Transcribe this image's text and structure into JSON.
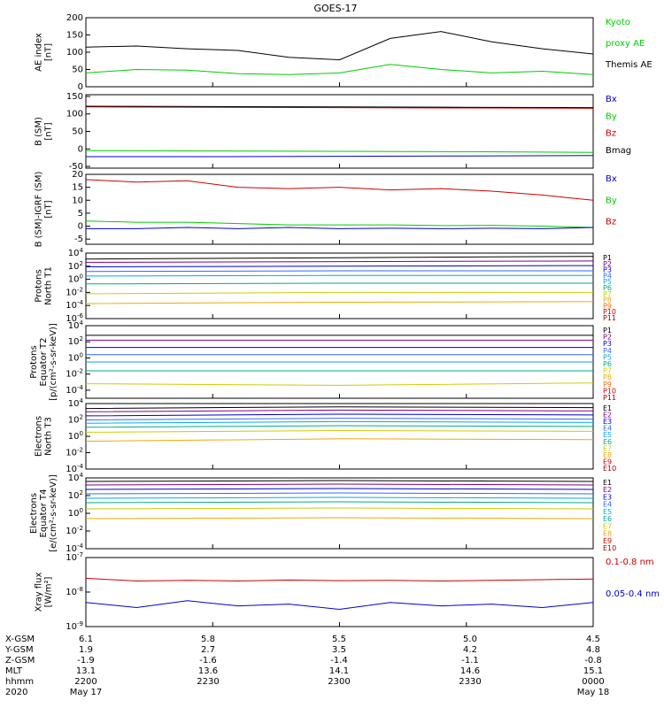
{
  "title": "GOES-17",
  "chart_data": [
    {
      "type": "line",
      "panel": "ae",
      "ylabel_lines": [
        "AE index",
        "[nT]"
      ],
      "ylim": [
        0,
        200
      ],
      "yticks": [
        "200",
        "150",
        "100",
        "50",
        "0"
      ],
      "yticks_values": [
        200,
        150,
        100,
        50,
        0
      ],
      "x": [
        0,
        0.1,
        0.2,
        0.3,
        0.4,
        0.5,
        0.6,
        0.7,
        0.8,
        0.9,
        1.0
      ],
      "legend": [
        {
          "label_lines": [
            "Kyoto",
            "proxy AE"
          ],
          "color": "#00cc00"
        },
        {
          "label_lines": [
            "Themis AE"
          ],
          "color": "#000000"
        }
      ],
      "series": [
        {
          "color": "#000000",
          "values": [
            115,
            118,
            110,
            105,
            85,
            78,
            140,
            160,
            130,
            110,
            95
          ]
        },
        {
          "color": "#00cc00",
          "values": [
            40,
            50,
            48,
            38,
            35,
            40,
            65,
            50,
            40,
            45,
            35
          ]
        }
      ]
    },
    {
      "type": "line",
      "panel": "bsm",
      "ylabel_lines": [
        "B (SM)",
        "[nT]"
      ],
      "ylim": [
        -55,
        155
      ],
      "yticks": [
        "150",
        "100",
        "50",
        "0",
        "-50"
      ],
      "yticks_values": [
        150,
        100,
        50,
        0,
        -50
      ],
      "x": [
        0,
        0.25,
        0.5,
        0.75,
        1.0
      ],
      "legend": [
        {
          "label_lines": [
            "Bx"
          ],
          "color": "#0000cc"
        },
        {
          "label_lines": [
            "By"
          ],
          "color": "#00cc00"
        },
        {
          "label_lines": [
            "Bz"
          ],
          "color": "#cc0000"
        },
        {
          "label_lines": [
            "Bmag"
          ],
          "color": "#000000"
        }
      ],
      "series": [
        {
          "color": "#0000cc",
          "values": [
            -22,
            -22,
            -21,
            -20,
            -19
          ]
        },
        {
          "color": "#00cc00",
          "values": [
            -5,
            -6,
            -7,
            -8,
            -10
          ]
        },
        {
          "color": "#cc0000",
          "values": [
            120,
            119,
            118,
            117,
            116
          ]
        },
        {
          "color": "#000000",
          "values": [
            122,
            121,
            120,
            119,
            118
          ]
        }
      ]
    },
    {
      "type": "line",
      "panel": "bigrf",
      "ylabel_lines": [
        "B (SM)-IGRF (SM)",
        "[nT]"
      ],
      "ylim": [
        -7,
        20
      ],
      "yticks": [
        "20",
        "15",
        "10",
        "5",
        "0",
        "-5"
      ],
      "yticks_values": [
        20,
        15,
        10,
        5,
        0,
        -5
      ],
      "x": [
        0,
        0.1,
        0.2,
        0.3,
        0.4,
        0.5,
        0.6,
        0.7,
        0.8,
        0.9,
        1.0
      ],
      "legend": [
        {
          "label_lines": [
            "Bx"
          ],
          "color": "#0000cc"
        },
        {
          "label_lines": [
            "By"
          ],
          "color": "#00cc00"
        },
        {
          "label_lines": [
            "Bz"
          ],
          "color": "#cc0000"
        }
      ],
      "series": [
        {
          "color": "#cc0000",
          "values": [
            18,
            17,
            17.5,
            15,
            14.5,
            15,
            14,
            14.5,
            13.5,
            12,
            10
          ]
        },
        {
          "color": "#00cc00",
          "values": [
            2,
            1.5,
            1.5,
            1,
            0.5,
            0.5,
            0.5,
            0.2,
            0.3,
            0,
            -0.5
          ]
        },
        {
          "color": "#0000cc",
          "values": [
            -1,
            -1,
            -0.5,
            -1,
            -0.5,
            -1,
            -0.8,
            -1,
            -0.8,
            -1,
            -0.5
          ]
        }
      ]
    },
    {
      "type": "line",
      "panel": "pn",
      "ylabel_lines": [
        "Protons",
        "North T1"
      ],
      "ylog": true,
      "ylim_exp": [
        -6,
        4
      ],
      "yticks": [
        "10^4",
        "10^2",
        "10^0",
        "10^-2",
        "10^-4",
        "10^-6"
      ],
      "yticks_values": [
        4,
        2,
        0,
        -2,
        -4,
        -6
      ],
      "x": [
        0,
        0.5,
        1.0
      ],
      "legend": [
        {
          "label_lines": [
            "P1"
          ],
          "color": "#000000"
        },
        {
          "label_lines": [
            "P2"
          ],
          "color": "#800080"
        },
        {
          "label_lines": [
            "P3"
          ],
          "color": "#0000cc"
        },
        {
          "label_lines": [
            "P4"
          ],
          "color": "#3366ff"
        },
        {
          "label_lines": [
            "P5"
          ],
          "color": "#00aaee"
        },
        {
          "label_lines": [
            "P6"
          ],
          "color": "#00aa88"
        },
        {
          "label_lines": [
            "P7"
          ],
          "color": "#cccc00"
        },
        {
          "label_lines": [
            "P8"
          ],
          "color": "#eeaa00"
        },
        {
          "label_lines": [
            "P9"
          ],
          "color": "#ff6600"
        },
        {
          "label_lines": [
            "P10"
          ],
          "color": "#cc0000"
        },
        {
          "label_lines": [
            "P11"
          ],
          "color": "#990000"
        }
      ],
      "series": [
        {
          "color": "#000000",
          "values": [
            3.1,
            3.3,
            3.5
          ]
        },
        {
          "color": "#800080",
          "values": [
            2.6,
            2.7,
            2.8
          ]
        },
        {
          "color": "#0000cc",
          "values": [
            1.9,
            2.0,
            2.1
          ]
        },
        {
          "color": "#3366ff",
          "values": [
            1.2,
            1.3,
            1.3
          ]
        },
        {
          "color": "#00aaee",
          "values": [
            0.5,
            0.6,
            0.6
          ]
        },
        {
          "color": "#00aa88",
          "values": [
            -0.7,
            -0.6,
            -0.6
          ]
        },
        {
          "color": "#cccc00",
          "values": [
            -2.2,
            -2.0,
            -2.0
          ]
        },
        {
          "color": "#eeaa00",
          "values": [
            -3.7,
            -3.5,
            -3.4
          ]
        }
      ]
    },
    {
      "type": "line",
      "panel": "pe",
      "ylabel_lines": [
        "Protons",
        "Equator T2",
        "[p/(cm²-s-sr-keV)]"
      ],
      "ylog": true,
      "ylim_exp": [
        -5,
        4
      ],
      "yticks": [
        "10^4",
        "10^2",
        "10^0",
        "10^-2",
        "10^-4"
      ],
      "yticks_values": [
        4,
        2,
        0,
        -2,
        -4
      ],
      "x": [
        0,
        0.5,
        1.0
      ],
      "legend": [
        {
          "label_lines": [
            "P1"
          ],
          "color": "#000000"
        },
        {
          "label_lines": [
            "P2"
          ],
          "color": "#800080"
        },
        {
          "label_lines": [
            "P3"
          ],
          "color": "#0000cc"
        },
        {
          "label_lines": [
            "P4"
          ],
          "color": "#3366ff"
        },
        {
          "label_lines": [
            "P5"
          ],
          "color": "#00aaee"
        },
        {
          "label_lines": [
            "P6"
          ],
          "color": "#00aa88"
        },
        {
          "label_lines": [
            "P7"
          ],
          "color": "#cccc00"
        },
        {
          "label_lines": [
            "P8"
          ],
          "color": "#eeaa00"
        },
        {
          "label_lines": [
            "P9"
          ],
          "color": "#ff6600"
        },
        {
          "label_lines": [
            "P10"
          ],
          "color": "#cc0000"
        },
        {
          "label_lines": [
            "P11"
          ],
          "color": "#990000"
        }
      ],
      "series": [
        {
          "color": "#000000",
          "values": [
            2.8,
            2.8,
            2.8
          ]
        },
        {
          "color": "#800080",
          "values": [
            2.2,
            2.2,
            2.2
          ]
        },
        {
          "color": "#0000cc",
          "values": [
            1.3,
            1.3,
            1.3
          ]
        },
        {
          "color": "#3366ff",
          "values": [
            0.4,
            0.4,
            0.4
          ]
        },
        {
          "color": "#00aaee",
          "values": [
            -0.5,
            -0.5,
            -0.5
          ]
        },
        {
          "color": "#00aa88",
          "values": [
            -1.6,
            -1.6,
            -1.6
          ]
        },
        {
          "color": "#cccc00",
          "values": [
            -3.2,
            -3.4,
            -3.1
          ]
        }
      ]
    },
    {
      "type": "line",
      "panel": "en",
      "ylabel_lines": [
        "Electrons",
        "North T3"
      ],
      "ylog": true,
      "ylim_exp": [
        -4,
        4
      ],
      "yticks": [
        "10^4",
        "10^2",
        "10^0",
        "10^-2",
        "10^-4"
      ],
      "yticks_values": [
        4,
        2,
        0,
        -2,
        -4
      ],
      "x": [
        0,
        0.5,
        1.0
      ],
      "legend": [
        {
          "label_lines": [
            "E1"
          ],
          "color": "#000000"
        },
        {
          "label_lines": [
            "E2"
          ],
          "color": "#800080"
        },
        {
          "label_lines": [
            "E3"
          ],
          "color": "#0000cc"
        },
        {
          "label_lines": [
            "E4"
          ],
          "color": "#3366ff"
        },
        {
          "label_lines": [
            "E5"
          ],
          "color": "#00aaee"
        },
        {
          "label_lines": [
            "E6"
          ],
          "color": "#00aa88"
        },
        {
          "label_lines": [
            "E7"
          ],
          "color": "#cccc00"
        },
        {
          "label_lines": [
            "E8"
          ],
          "color": "#eeaa00"
        },
        {
          "label_lines": [
            "E9"
          ],
          "color": "#cc0000"
        },
        {
          "label_lines": [
            "E10"
          ],
          "color": "#990000"
        }
      ],
      "series": [
        {
          "color": "#000000",
          "values": [
            3.4,
            3.6,
            3.5
          ]
        },
        {
          "color": "#800080",
          "values": [
            3.0,
            3.2,
            3.1
          ]
        },
        {
          "color": "#0000cc",
          "values": [
            2.5,
            2.7,
            2.6
          ]
        },
        {
          "color": "#3366ff",
          "values": [
            2.0,
            2.2,
            2.1
          ]
        },
        {
          "color": "#00aaee",
          "values": [
            1.6,
            1.8,
            1.7
          ]
        },
        {
          "color": "#00aa88",
          "values": [
            1.1,
            1.3,
            1.2
          ]
        },
        {
          "color": "#cccc00",
          "values": [
            0.5,
            0.7,
            0.6
          ]
        },
        {
          "color": "#eeaa00",
          "values": [
            -0.6,
            -0.3,
            -0.4
          ]
        }
      ]
    },
    {
      "type": "line",
      "panel": "ee",
      "ylabel_lines": [
        "Electrons",
        "Equator T4",
        "[e/(cm²-s-sr-keV)]"
      ],
      "ylog": true,
      "ylim_exp": [
        -4,
        4
      ],
      "yticks": [
        "10^4",
        "10^2",
        "10^0",
        "10^-2",
        "10^-4"
      ],
      "yticks_values": [
        4,
        2,
        0,
        -2,
        -4
      ],
      "x": [
        0,
        0.5,
        1.0
      ],
      "legend": [
        {
          "label_lines": [
            "E1"
          ],
          "color": "#000000"
        },
        {
          "label_lines": [
            "E2"
          ],
          "color": "#800080"
        },
        {
          "label_lines": [
            "E3"
          ],
          "color": "#0000cc"
        },
        {
          "label_lines": [
            "E4"
          ],
          "color": "#3366ff"
        },
        {
          "label_lines": [
            "E5"
          ],
          "color": "#00aaee"
        },
        {
          "label_lines": [
            "E6"
          ],
          "color": "#00aa88"
        },
        {
          "label_lines": [
            "E7"
          ],
          "color": "#cccc00"
        },
        {
          "label_lines": [
            "E8"
          ],
          "color": "#eeaa00"
        },
        {
          "label_lines": [
            "E9"
          ],
          "color": "#cc0000"
        },
        {
          "label_lines": [
            "E10"
          ],
          "color": "#990000"
        }
      ],
      "series": [
        {
          "color": "#000000",
          "values": [
            3.6,
            3.7,
            3.6
          ]
        },
        {
          "color": "#800080",
          "values": [
            3.2,
            3.3,
            3.2
          ]
        },
        {
          "color": "#0000cc",
          "values": [
            2.7,
            2.8,
            2.7
          ]
        },
        {
          "color": "#3366ff",
          "values": [
            2.2,
            2.3,
            2.2
          ]
        },
        {
          "color": "#00aaee",
          "values": [
            1.7,
            1.8,
            1.7
          ]
        },
        {
          "color": "#00aa88",
          "values": [
            1.2,
            1.3,
            1.2
          ]
        },
        {
          "color": "#cccc00",
          "values": [
            0.5,
            0.6,
            0.5
          ]
        },
        {
          "color": "#eeaa00",
          "values": [
            -0.6,
            -0.5,
            -0.6
          ]
        }
      ]
    },
    {
      "type": "line",
      "panel": "xray",
      "ylabel_lines": [
        "Xray flux",
        "[W/m²]"
      ],
      "ylog": true,
      "ylim_exp": [
        -9,
        -7
      ],
      "yticks": [
        "10^-7",
        "10^-8",
        "10^-9"
      ],
      "yticks_values": [
        -7,
        -8,
        -9
      ],
      "x": [
        0,
        0.1,
        0.2,
        0.3,
        0.4,
        0.5,
        0.6,
        0.7,
        0.8,
        0.9,
        1.0
      ],
      "legend": [
        {
          "label_lines": [
            "0.1-0.8 nm"
          ],
          "color": "#cc0000"
        },
        {
          "label_lines": [
            "0.05-0.4 nm"
          ],
          "color": "#0000cc"
        }
      ],
      "series": [
        {
          "color": "#cc0000",
          "values": [
            -7.6,
            -7.68,
            -7.66,
            -7.68,
            -7.65,
            -7.67,
            -7.66,
            -7.68,
            -7.66,
            -7.64,
            -7.62
          ]
        },
        {
          "color": "#0000cc",
          "values": [
            -8.3,
            -8.45,
            -8.25,
            -8.4,
            -8.35,
            -8.5,
            -8.3,
            -8.4,
            -8.35,
            -8.45,
            -8.3
          ]
        }
      ]
    }
  ],
  "footer": {
    "rows": [
      {
        "label": "X-GSM",
        "values": [
          "6.1",
          "5.8",
          "5.5",
          "5.0",
          "4.5"
        ]
      },
      {
        "label": "Y-GSM",
        "values": [
          "1.9",
          "2.7",
          "3.5",
          "4.2",
          "4.8"
        ]
      },
      {
        "label": "Z-GSM",
        "values": [
          "-1.9",
          "-1.6",
          "-1.4",
          "-1.1",
          "-0.8"
        ]
      },
      {
        "label": "MLT",
        "values": [
          "13.1",
          "13.6",
          "14.1",
          "14.6",
          "15.1"
        ]
      },
      {
        "label": "hhmm",
        "values": [
          "2200",
          "2230",
          "2300",
          "2330",
          "0000"
        ]
      },
      {
        "label": "2020",
        "values": [
          "May 17",
          "",
          "",
          "",
          "May 18"
        ]
      }
    ]
  }
}
